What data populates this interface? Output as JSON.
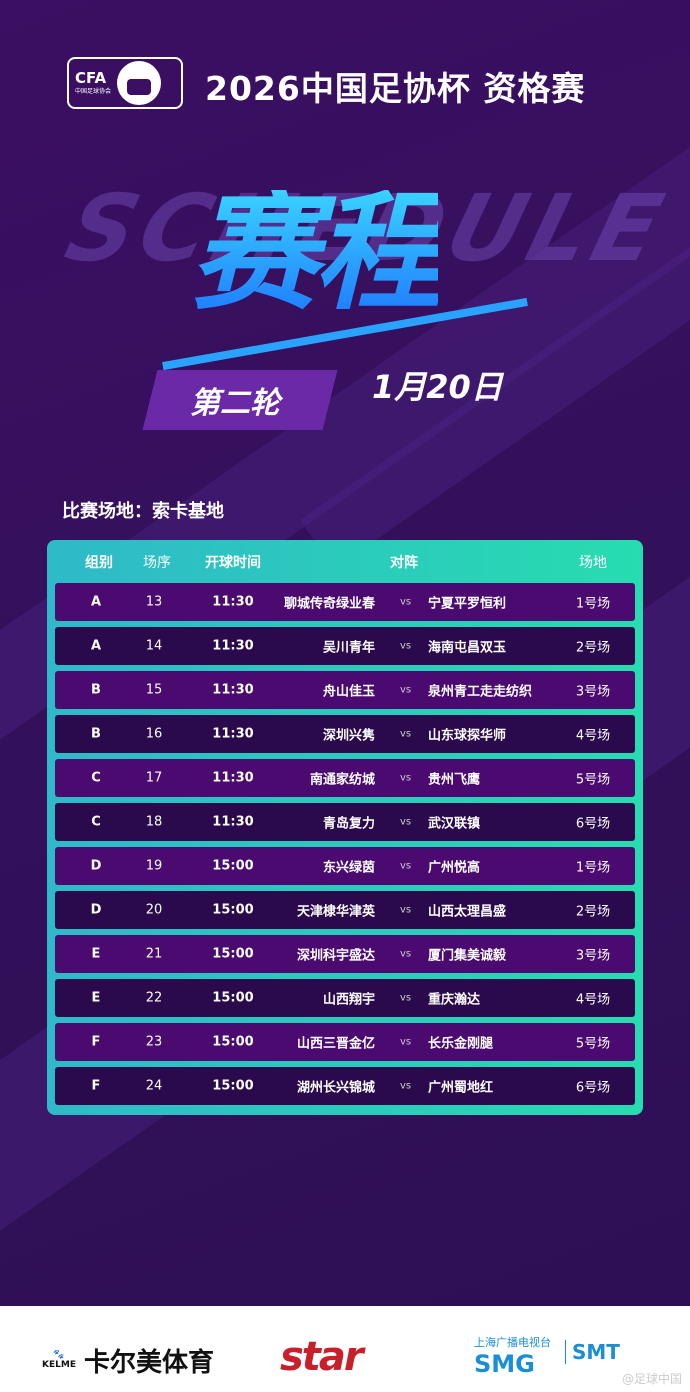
{
  "header": {
    "logo_text": "CFA",
    "logo_sub": "中国足球协会",
    "title": "2026中国足协杯 资格赛"
  },
  "hero": {
    "ghost_text": "SCHEDULE",
    "title": "赛程",
    "round": "第二轮",
    "date": "1月20日"
  },
  "venue": "比赛场地：索卡基地",
  "table": {
    "headers": [
      "组别",
      "场序",
      "开球时间",
      "对阵",
      "场地"
    ],
    "vs": "vs",
    "rows": [
      {
        "group": "A",
        "num": "13",
        "time": "11:30",
        "home": "聊城传奇绿业春",
        "away": "宁夏平罗恒利",
        "pitch": "1号场"
      },
      {
        "group": "A",
        "num": "14",
        "time": "11:30",
        "home": "吴川青年",
        "away": "海南屯昌双玉",
        "pitch": "2号场"
      },
      {
        "group": "B",
        "num": "15",
        "time": "11:30",
        "home": "舟山佳玉",
        "away": "泉州青工走走纺织",
        "pitch": "3号场"
      },
      {
        "group": "B",
        "num": "16",
        "time": "11:30",
        "home": "深圳兴隽",
        "away": "山东球探华师",
        "pitch": "4号场"
      },
      {
        "group": "C",
        "num": "17",
        "time": "11:30",
        "home": "南通家纺城",
        "away": "贵州飞鹰",
        "pitch": "5号场"
      },
      {
        "group": "C",
        "num": "18",
        "time": "11:30",
        "home": "青岛复力",
        "away": "武汉联镇",
        "pitch": "6号场"
      },
      {
        "group": "D",
        "num": "19",
        "time": "15:00",
        "home": "东兴绿茵",
        "away": "广州悦高",
        "pitch": "1号场"
      },
      {
        "group": "D",
        "num": "20",
        "time": "15:00",
        "home": "天津棣华津英",
        "away": "山西太理昌盛",
        "pitch": "2号场"
      },
      {
        "group": "E",
        "num": "21",
        "time": "15:00",
        "home": "深圳科宇盛达",
        "away": "厦门集美诚毅",
        "pitch": "3号场"
      },
      {
        "group": "E",
        "num": "22",
        "time": "15:00",
        "home": "山西翔宇",
        "away": "重庆瀚达",
        "pitch": "4号场"
      },
      {
        "group": "F",
        "num": "23",
        "time": "15:00",
        "home": "山西三晋金亿",
        "away": "长乐金刚腿",
        "pitch": "5号场"
      },
      {
        "group": "F",
        "num": "24",
        "time": "15:00",
        "home": "湖州长兴锦城",
        "away": "广州蜀地红",
        "pitch": "6号场"
      }
    ]
  },
  "sponsors": {
    "kelme_en": "KELME",
    "kelme_cn": "卡尔美体育",
    "star": "star",
    "smg_top": "上海广播电视台",
    "smg": "SMG",
    "smt": "SMT",
    "watermark": "@足球中国"
  },
  "colors": {
    "bg": "#36105c",
    "row_odd": "#4a0a70",
    "row_even": "#2a0a4c",
    "table_border": "#27dcb0",
    "title_blue": "#2aa2ff"
  }
}
